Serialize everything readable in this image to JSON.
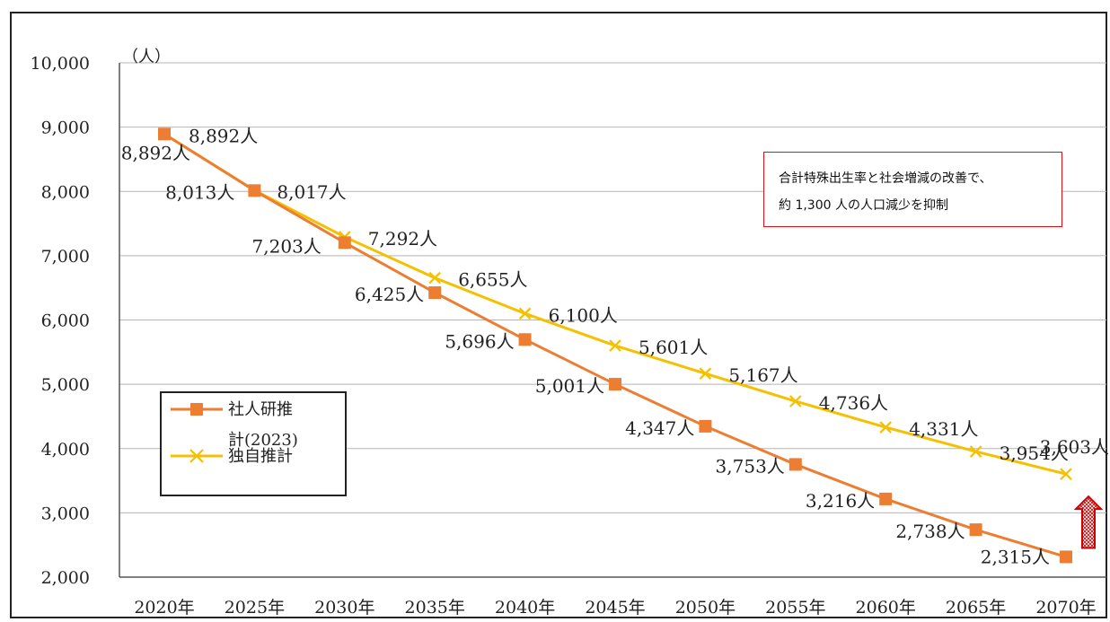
{
  "chart_data": {
    "type": "line",
    "title": "",
    "ylabel": "（人）",
    "xlabel": "",
    "ylim": [
      2000,
      10000
    ],
    "yticks": [
      {
        "value": 2000,
        "label": "2,000"
      },
      {
        "value": 3000,
        "label": "3,000"
      },
      {
        "value": 4000,
        "label": "4,000"
      },
      {
        "value": 5000,
        "label": "5,000"
      },
      {
        "value": 6000,
        "label": "6,000"
      },
      {
        "value": 7000,
        "label": "7,000"
      },
      {
        "value": 8000,
        "label": "8,000"
      },
      {
        "value": 9000,
        "label": "9,000"
      },
      {
        "value": 10000,
        "label": "10,000"
      }
    ],
    "categories": [
      "2020年",
      "2025年",
      "2030年",
      "2035年",
      "2040年",
      "2045年",
      "2050年",
      "2055年",
      "2060年",
      "2065年",
      "2070年"
    ],
    "grid": true,
    "legend_position": "left",
    "series": [
      {
        "name": "社人研推計(2023)",
        "legend_lines": [
          "社人研推",
          "計(2023)"
        ],
        "color": "#ED7D31",
        "marker": "square",
        "values": [
          8892,
          8013,
          7203,
          6425,
          5696,
          5001,
          4347,
          3753,
          3216,
          2738,
          2315
        ],
        "labels": [
          "8,892人",
          "8,013人",
          "7,203人",
          "6,425人",
          "5,696人",
          "5,001人",
          "4,347人",
          "3,753人",
          "3,216人",
          "2,738人",
          "2,315人"
        ]
      },
      {
        "name": "独自推計",
        "legend_lines": [
          "独自推計"
        ],
        "color": "#F5C000",
        "marker": "x",
        "values": [
          8892,
          8017,
          7292,
          6655,
          6100,
          5601,
          5167,
          4736,
          4331,
          3954,
          3603
        ],
        "labels": [
          "8,892人",
          "8,017人",
          "7,292人",
          "6,655人",
          "6,100人",
          "5,601人",
          "5,167人",
          "4,736人",
          "4,331人",
          "3,954人",
          "3,603人"
        ]
      }
    ],
    "annotation": {
      "lines": [
        "合計特殊出生率と社会増減の改善で、",
        "約 1,300 人の人口減少を抑制"
      ],
      "border_color": "#DD1111"
    },
    "arrow_color": "#CC0000"
  }
}
